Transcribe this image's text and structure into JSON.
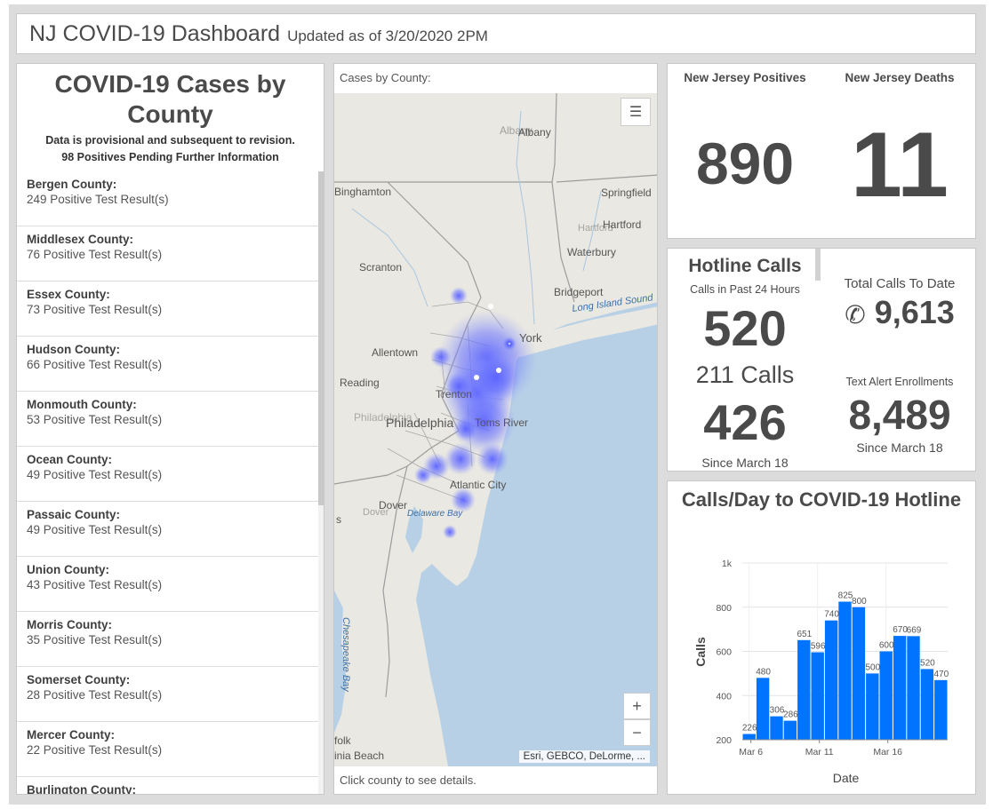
{
  "header": {
    "title": "NJ COVID-19 Dashboard",
    "updated": "Updated as of 3/20/2020 2PM"
  },
  "county_list": {
    "title_line1": "COVID-19 Cases by",
    "title_line2": "County",
    "note1": "Data is provisional and subsequent to revision.",
    "note2": "98 Positives Pending Further Information",
    "items": [
      {
        "name": "Bergen County:",
        "value": "249 Positive Test Result(s)"
      },
      {
        "name": "Middlesex County:",
        "value": "76 Positive Test Result(s)"
      },
      {
        "name": "Essex County:",
        "value": "73 Positive Test Result(s)"
      },
      {
        "name": "Hudson County:",
        "value": "66 Positive Test Result(s)"
      },
      {
        "name": "Monmouth County:",
        "value": "53 Positive Test Result(s)"
      },
      {
        "name": "Ocean County:",
        "value": "49 Positive Test Result(s)"
      },
      {
        "name": "Passaic County:",
        "value": "49 Positive Test Result(s)"
      },
      {
        "name": "Union County:",
        "value": "43 Positive Test Result(s)"
      },
      {
        "name": "Morris County:",
        "value": "35 Positive Test Result(s)"
      },
      {
        "name": "Somerset County:",
        "value": "28 Positive Test Result(s)"
      },
      {
        "name": "Mercer County:",
        "value": "22 Positive Test Result(s)"
      },
      {
        "name": "Burlington County:",
        "value": ""
      }
    ]
  },
  "map": {
    "label": "Cases by County:",
    "footer": "Click county to see details.",
    "attribution": "Esri, GEBCO, DeLorme, ...",
    "zoom_in": "+",
    "zoom_out": "−",
    "places": {
      "albany": "Albany",
      "binghamton": "Binghamton",
      "springfield": "Springfield",
      "hartford": "Hartford",
      "waterbury": "Waterbury",
      "scranton": "Scranton",
      "bridgeport": "Bridgeport",
      "long_island_sound": "Long Island Sound",
      "new_york": "York",
      "allentown": "Allentown",
      "reading": "Reading",
      "trenton": "Trenton",
      "philadelphia": "Philadelphia",
      "toms_river": "Toms River",
      "atlantic_city": "Atlantic City",
      "dover": "Dover",
      "delaware_bay": "Delaware Bay",
      "chesapeake_bay": "Chesapeake Bay",
      "norfolk": "folk",
      "virginia_beach": "inia Beach",
      "s_fragment": "s"
    }
  },
  "stats": {
    "positives_label": "New Jersey Positives",
    "positives_value": "890",
    "deaths_label": "New Jersey Deaths",
    "deaths_value": "11"
  },
  "hotline": {
    "title": "Hotline Calls",
    "past24_label": "Calls in Past 24 Hours",
    "past24_value": "520",
    "calls211": "211 Calls",
    "calls211_value": "426",
    "since_label": "Since March 18",
    "total_label": "Total Calls To Date",
    "total_value": "9,613",
    "text_alert_label": "Text Alert Enrollments",
    "text_alert_value": "8,489",
    "text_since_label": "Since March 18"
  },
  "chart_data": {
    "type": "bar",
    "title": "Calls/Day to COVID-19 Hotline",
    "xlabel": "Date",
    "ylabel": "Calls",
    "ylim": [
      200,
      1000
    ],
    "yticks": [
      "200",
      "400",
      "600",
      "800",
      "1k"
    ],
    "xticks": [
      "Mar 6",
      "Mar 11",
      "Mar 16"
    ],
    "color": "#0074ff",
    "values": [
      226,
      480,
      306,
      286,
      651,
      596,
      740,
      825,
      800,
      500,
      600,
      670,
      669,
      520,
      470
    ]
  }
}
